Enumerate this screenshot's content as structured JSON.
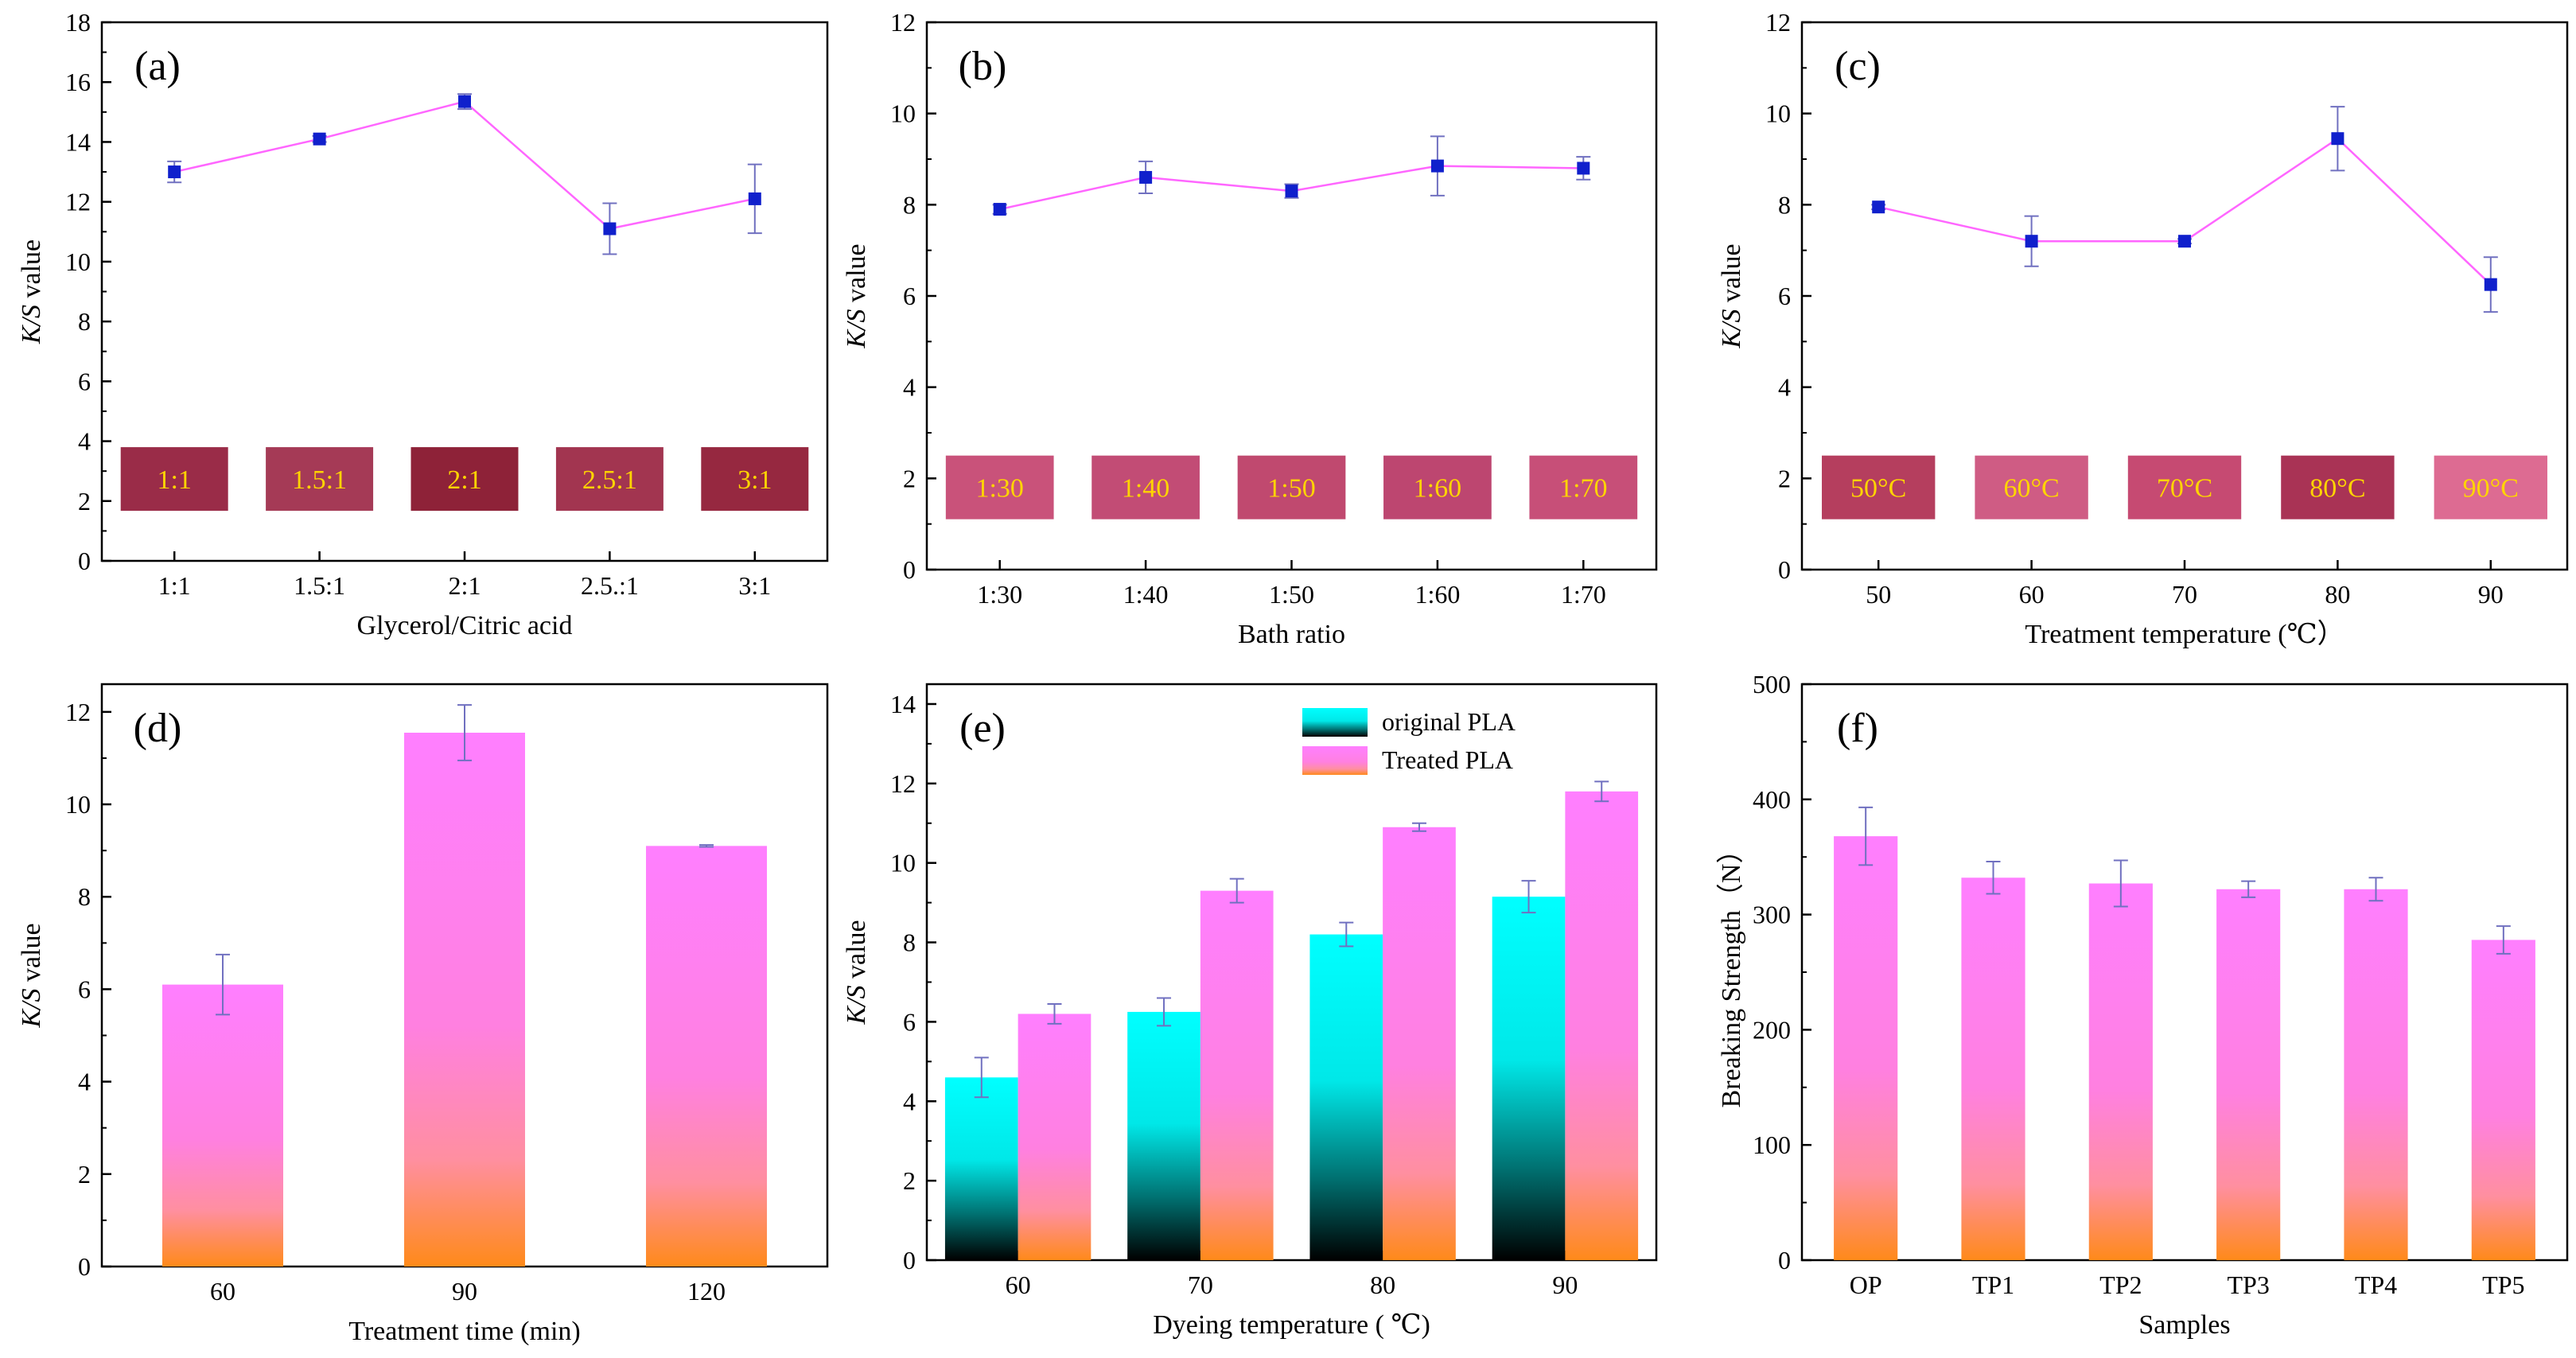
{
  "colors": {
    "line": "#ff66ff",
    "marker": "#1020cc",
    "error": "#7070c0",
    "swatch_label": "#ffd400",
    "pink_bar_top": "#ff7fff",
    "pink_bar_bottom": "#ff8a1a",
    "cyan_bar_top": "#00ffff",
    "cyan_bar_bottom": "#000000"
  },
  "chart_data": [
    {
      "panel": "(a)",
      "type": "line",
      "categories": [
        "1:1",
        "1.5:1",
        "2:1",
        "2.5.:1",
        "3:1"
      ],
      "values": [
        13.0,
        14.1,
        15.35,
        11.1,
        12.1
      ],
      "errors": [
        0.35,
        0.1,
        0.25,
        0.85,
        1.15
      ],
      "xlabel": "Glycerol/Citric acid",
      "ylabel_italic": "K/S",
      "ylabel_rest": " value",
      "ylim": [
        0,
        18
      ],
      "yticks": [
        0,
        2,
        4,
        6,
        8,
        10,
        12,
        14,
        16,
        18
      ],
      "swatches": {
        "labels": [
          "1:1",
          "1.5:1",
          "2:1",
          "2.5:1",
          "3:1"
        ],
        "colors": [
          "#9a2c48",
          "#a53a56",
          "#8e2238",
          "#a23550",
          "#962840"
        ]
      }
    },
    {
      "panel": "(b)",
      "type": "line",
      "categories": [
        "1:30",
        "1:40",
        "1:50",
        "1:60",
        "1:70"
      ],
      "values": [
        7.9,
        8.6,
        8.3,
        8.85,
        8.8
      ],
      "errors": [
        0.1,
        0.35,
        0.15,
        0.65,
        0.25
      ],
      "xlabel": "Bath ratio",
      "ylabel_italic": "K/S",
      "ylabel_rest": " value",
      "ylim": [
        0,
        12
      ],
      "yticks": [
        0,
        2,
        4,
        6,
        8,
        10,
        12
      ],
      "swatches": {
        "labels": [
          "1:30",
          "1:40",
          "1:50",
          "1:60",
          "1:70"
        ],
        "colors": [
          "#c9527a",
          "#c24c75",
          "#c0496f",
          "#bd4670",
          "#c74f78"
        ]
      }
    },
    {
      "panel": "(c)",
      "type": "line",
      "categories": [
        "50",
        "60",
        "70",
        "80",
        "90"
      ],
      "values": [
        7.95,
        7.2,
        7.2,
        9.45,
        6.25
      ],
      "errors": [
        0.05,
        0.55,
        0.05,
        0.7,
        0.6
      ],
      "xlabel": "Treatment temperature (℃）",
      "ylabel_italic": "K/S",
      "ylabel_rest": " value",
      "ylim": [
        0,
        12
      ],
      "yticks": [
        0,
        2,
        4,
        6,
        8,
        10,
        12
      ],
      "swatches": {
        "labels": [
          "50°C",
          "60°C",
          "70°C",
          "80°C",
          "90°C"
        ],
        "colors": [
          "#b53e5e",
          "#cf5c84",
          "#c64a72",
          "#a93355",
          "#dd6b92"
        ]
      }
    },
    {
      "panel": "(d)",
      "type": "bar",
      "categories": [
        "60",
        "90",
        "120"
      ],
      "values": [
        6.1,
        11.55,
        9.1
      ],
      "errors": [
        0.65,
        0.6,
        0.02
      ],
      "xlabel": "Treatment time (min)",
      "ylabel_italic": "K/S",
      "ylabel_rest": " value",
      "ylim": [
        0,
        12.6
      ],
      "yticks": [
        0,
        2,
        4,
        6,
        8,
        10,
        12
      ]
    },
    {
      "panel": "(e)",
      "type": "bar",
      "categories": [
        "60",
        "70",
        "80",
        "90"
      ],
      "series": [
        {
          "name": "original PLA",
          "values": [
            4.6,
            6.25,
            8.2,
            9.15
          ],
          "errors": [
            0.5,
            0.35,
            0.3,
            0.4
          ]
        },
        {
          "name": "Treated PLA",
          "values": [
            6.2,
            9.3,
            10.9,
            11.8
          ],
          "errors": [
            0.25,
            0.3,
            0.1,
            0.25
          ]
        }
      ],
      "xlabel": "Dyeing temperature ( ℃)",
      "ylabel_italic": "K/S",
      "ylabel_rest": " value",
      "ylim": [
        0,
        14.5
      ],
      "yticks": [
        0,
        2,
        4,
        6,
        8,
        10,
        12,
        14
      ],
      "legend": "top-right"
    },
    {
      "panel": "(f)",
      "type": "bar",
      "categories": [
        "OP",
        "TP1",
        "TP2",
        "TP3",
        "TP4",
        "TP5"
      ],
      "values": [
        368,
        332,
        327,
        322,
        322,
        278
      ],
      "errors": [
        25,
        14,
        20,
        7,
        10,
        12
      ],
      "xlabel": "Samples",
      "ylabel_italic": "",
      "ylabel_rest": "Breaking Strength（N）",
      "ylim": [
        0,
        500
      ],
      "yticks": [
        0,
        100,
        200,
        300,
        400,
        500
      ]
    }
  ]
}
